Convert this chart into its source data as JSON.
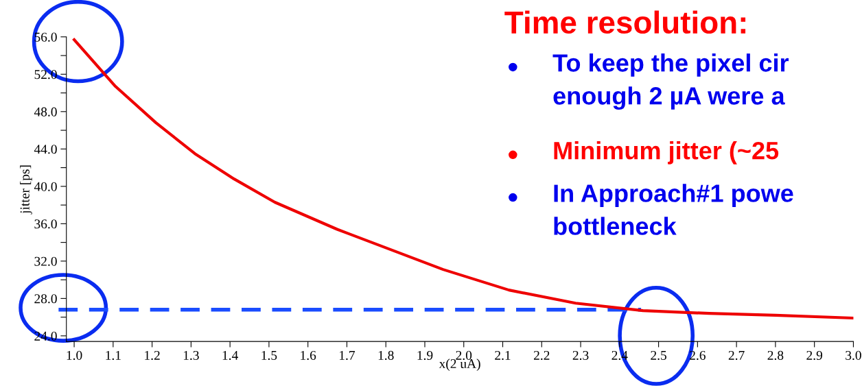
{
  "chart_data": {
    "type": "line",
    "title": "Time resolution:",
    "xlabel": "x(2 uA)",
    "ylabel": "jitter [ps]",
    "annotations": [
      "To keep the pixel cir\nenough 2 µA were a",
      "Minimum jitter (~25",
      "In Approach#1 powe\nbottleneck"
    ],
    "x": [
      1.0,
      1.106,
      1.21,
      1.31,
      1.41,
      1.515,
      1.675,
      1.947,
      2.116,
      2.287,
      2.46,
      2.63,
      2.8,
      3.0
    ],
    "series": [
      {
        "color": "#ee0000",
        "values": [
          55.7,
          50.7,
          46.8,
          43.5,
          40.8,
          38.3,
          35.4,
          31.1,
          28.9,
          27.5,
          26.7,
          26.4,
          26.2,
          25.9
        ]
      }
    ],
    "xlim": [
      0.98,
      3.0
    ],
    "ylim": [
      23.4,
      56.0
    ],
    "xticks": [
      {
        "value": 1.0,
        "label": "1.0"
      },
      {
        "value": 1.1,
        "label": "1.1"
      },
      {
        "value": 1.2,
        "label": "1.2"
      },
      {
        "value": 1.3,
        "label": "1.3"
      },
      {
        "value": 1.4,
        "label": "1.4"
      },
      {
        "value": 1.5,
        "label": "1.5"
      },
      {
        "value": 1.6,
        "label": "1.6"
      },
      {
        "value": 1.7,
        "label": "1.7"
      },
      {
        "value": 1.8,
        "label": "1.8"
      },
      {
        "value": 1.9,
        "label": "1.9"
      },
      {
        "value": 2.0,
        "label": "2.0"
      },
      {
        "value": 2.1,
        "label": "2.1"
      },
      {
        "value": 2.2,
        "label": "2.2"
      },
      {
        "value": 2.3,
        "label": "2.3"
      },
      {
        "value": 2.4,
        "label": "2.4"
      },
      {
        "value": 2.5,
        "label": "2.5"
      },
      {
        "value": 2.6,
        "label": "2.6"
      },
      {
        "value": 2.7,
        "label": "2.7"
      },
      {
        "value": 2.8,
        "label": "2.8"
      },
      {
        "value": 2.9,
        "label": "2.9"
      },
      {
        "value": 3.0,
        "label": "3.0"
      }
    ],
    "yticks": [
      {
        "value": 24,
        "label": "24.0"
      },
      {
        "value": 26,
        "label": null
      },
      {
        "value": 28,
        "label": "28.0"
      },
      {
        "value": 30,
        "label": null
      },
      {
        "value": 32,
        "label": "32.0"
      },
      {
        "value": 34,
        "label": null
      },
      {
        "value": 36,
        "label": "36.0"
      },
      {
        "value": 38,
        "label": null
      },
      {
        "value": 40,
        "label": "40.0"
      },
      {
        "value": 42,
        "label": null
      },
      {
        "value": 44,
        "label": "44.0"
      },
      {
        "value": 46,
        "label": null
      },
      {
        "value": 48,
        "label": "48.0"
      },
      {
        "value": 50,
        "label": null
      },
      {
        "value": 52,
        "label": "52.0"
      },
      {
        "value": 54,
        "label": null
      },
      {
        "value": 56,
        "label": "56.0"
      }
    ],
    "ref_lines": [
      {
        "axis": "y",
        "value": 26.8,
        "color": "#1a4cff",
        "line_style": "dashed"
      }
    ],
    "grid": false,
    "legend": false,
    "marker": "none",
    "line_style": "solid"
  }
}
